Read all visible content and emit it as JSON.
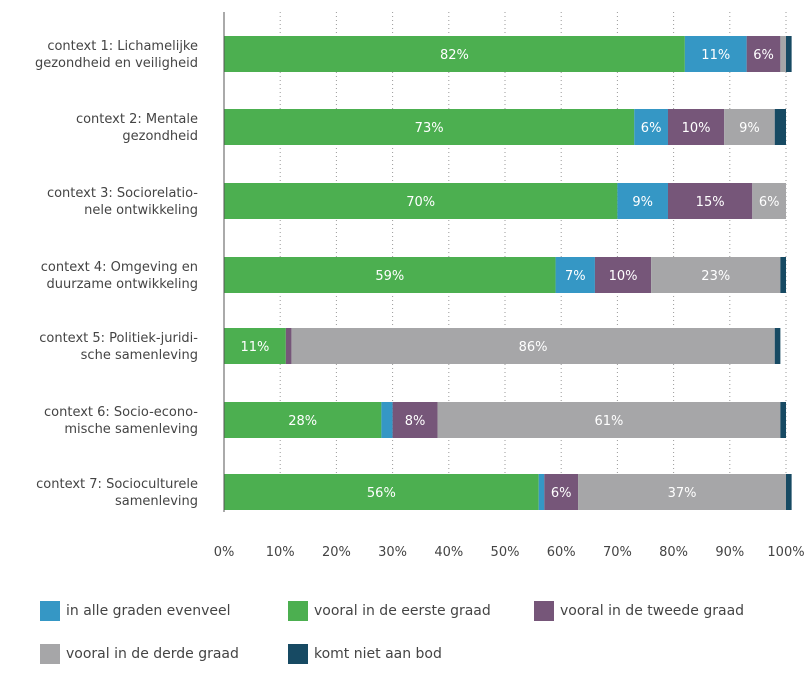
{
  "chart_data": {
    "type": "bar",
    "orientation": "horizontal",
    "stacked": true,
    "categories": [
      [
        "context 1: Lichamelijke",
        "gezondheid en veiligheid"
      ],
      [
        "context 2: Mentale",
        "gezondheid"
      ],
      [
        "context 3: Sociorelatio-",
        "nele ontwikkeling"
      ],
      [
        "context 4: Omgeving en",
        "duurzame ontwikkeling"
      ],
      [
        "context 5: Politiek-juridi-",
        "sche samenleving"
      ],
      [
        "context 6: Socio-econo-",
        "mische samenleving"
      ],
      [
        "context 7: Socioculturele",
        "samenleving"
      ]
    ],
    "series": [
      {
        "name": "vooral in de eerste graad",
        "color": "#4caf50",
        "values": [
          82,
          73,
          70,
          59,
          11,
          28,
          56
        ],
        "labels": [
          "82%",
          "73%",
          "70%",
          "59%",
          "11%",
          "28%",
          "56%"
        ]
      },
      {
        "name": "in alle graden evenveel",
        "color": "#3597c5",
        "values": [
          11,
          6,
          9,
          7,
          0,
          2,
          1
        ],
        "labels": [
          "11%",
          "6%",
          "9%",
          "7%",
          "",
          "",
          ""
        ]
      },
      {
        "name": "vooral in de tweede graad",
        "color": "#765679",
        "values": [
          6,
          10,
          15,
          10,
          1,
          8,
          6
        ],
        "labels": [
          "6%",
          "10%",
          "15%",
          "10%",
          "",
          "8%",
          "6%"
        ]
      },
      {
        "name": "vooral in de derde graad",
        "color": "#a6a6a8",
        "values": [
          1,
          9,
          6,
          23,
          86,
          61,
          37
        ],
        "labels": [
          "",
          "9%",
          "6%",
          "23%",
          "86%",
          "61%",
          "37%"
        ]
      },
      {
        "name": "komt niet aan bod",
        "color": "#174a63",
        "values": [
          1,
          2,
          0,
          1,
          1,
          1,
          1
        ],
        "labels": [
          "",
          "",
          "",
          "",
          "",
          "",
          ""
        ]
      }
    ],
    "xlim": [
      0,
      100
    ],
    "x_ticks": [
      "0%",
      "10%",
      "20%",
      "30%",
      "40%",
      "50%",
      "60%",
      "70%",
      "80%",
      "90%",
      "100%"
    ],
    "grid": "vertical dotted",
    "legend_position": "bottom",
    "legend_order": [
      "in alle graden evenveel",
      "vooral in de eerste graad",
      "vooral in de tweede graad",
      "vooral in de derde graad",
      "komt niet aan bod"
    ]
  }
}
